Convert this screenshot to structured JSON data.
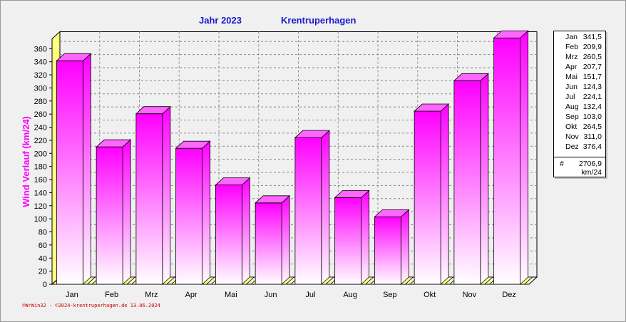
{
  "header": {
    "year_label": "Jahr  2023",
    "station": "Krentruperhagen"
  },
  "chart_data": {
    "type": "bar",
    "categories": [
      "Jan",
      "Feb",
      "Mrz",
      "Apr",
      "Mai",
      "Jun",
      "Jul",
      "Aug",
      "Sep",
      "Okt",
      "Nov",
      "Dez"
    ],
    "values": [
      341.5,
      209.9,
      260.5,
      207.7,
      151.7,
      124.3,
      224.1,
      132.4,
      103.0,
      264.5,
      311.0,
      376.4
    ],
    "ylabel": "Wind Verlauf  (km/24)",
    "ylim": [
      0,
      375
    ],
    "yticks": [
      0,
      20,
      40,
      60,
      80,
      100,
      120,
      140,
      160,
      180,
      200,
      220,
      240,
      260,
      280,
      300,
      320,
      340,
      360
    ],
    "grid": true,
    "legend_position": "right",
    "colors": {
      "bar_top": "#ff00ff",
      "bar_bottom": "#ffffff",
      "floor": "#ffff80",
      "axis_text": "#000000",
      "ylabel": "#ff00ff"
    }
  },
  "legend": {
    "rows": [
      {
        "month": "Jan",
        "value": "341,5"
      },
      {
        "month": "Feb",
        "value": "209,9"
      },
      {
        "month": "Mrz",
        "value": "260,5"
      },
      {
        "month": "Apr",
        "value": "207,7"
      },
      {
        "month": "Mai",
        "value": "151,7"
      },
      {
        "month": "Jun",
        "value": "124,3"
      },
      {
        "month": "Jul",
        "value": "224,1"
      },
      {
        "month": "Aug",
        "value": "132,4"
      },
      {
        "month": "Sep",
        "value": "103,0"
      },
      {
        "month": "Okt",
        "value": "264,5"
      },
      {
        "month": "Nov",
        "value": "311,0"
      },
      {
        "month": "Dez",
        "value": "376,4"
      }
    ],
    "total_symbol": "#",
    "total": "2706,9",
    "unit": "km/24"
  },
  "footer": {
    "credit": "©WrWin32 - ©2024-krentruperhagen.de 13.06.2024"
  }
}
